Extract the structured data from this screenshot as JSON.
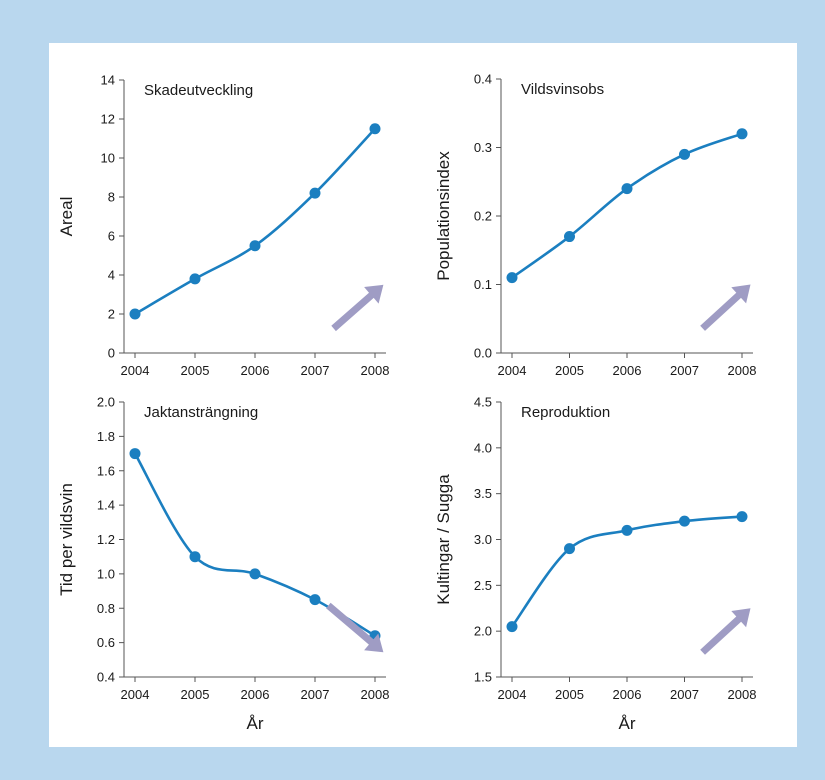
{
  "chart_data": [
    {
      "type": "line",
      "title": "Skadeutveckling",
      "xlabel": "",
      "ylabel": "Areal",
      "x": [
        "2004",
        "2005",
        "2006",
        "2007",
        "2008"
      ],
      "values": [
        2.0,
        3.8,
        5.5,
        8.2,
        11.5
      ],
      "ylim": [
        0,
        14
      ],
      "yticks": [
        "0",
        "2",
        "4",
        "6",
        "8",
        "10",
        "12",
        "14"
      ],
      "trend": "up",
      "color": "#1b7fc0",
      "arrow_color": "#9f9cc4"
    },
    {
      "type": "line",
      "title": "Vildsvinsobs",
      "xlabel": "",
      "ylabel": "Populationsindex",
      "x": [
        "2004",
        "2005",
        "2006",
        "2007",
        "2008"
      ],
      "values": [
        0.11,
        0.17,
        0.24,
        0.29,
        0.32
      ],
      "ylim": [
        0.0,
        0.4
      ],
      "yticks": [
        "0.0",
        "0.1",
        "0.2",
        "0.3",
        "0.4"
      ],
      "trend": "up",
      "color": "#1b7fc0",
      "arrow_color": "#9f9cc4"
    },
    {
      "type": "line",
      "title": "Jaktansträngning",
      "xlabel": "År",
      "ylabel": "Tid per vildsvin",
      "x": [
        "2004",
        "2005",
        "2006",
        "2007",
        "2008"
      ],
      "values": [
        1.7,
        1.1,
        1.0,
        0.85,
        0.64
      ],
      "ylim": [
        0.4,
        2.0
      ],
      "yticks": [
        "0.4",
        "0.6",
        "0.8",
        "1.0",
        "1.2",
        "1.4",
        "1.6",
        "1.8",
        "2.0"
      ],
      "trend": "down",
      "color": "#1b7fc0",
      "arrow_color": "#9f9cc4"
    },
    {
      "type": "line",
      "title": "Reproduktion",
      "xlabel": "År",
      "ylabel": "Kultingar / Sugga",
      "x": [
        "2004",
        "2005",
        "2006",
        "2007",
        "2008"
      ],
      "values": [
        2.05,
        2.9,
        3.1,
        3.2,
        3.25
      ],
      "ylim": [
        1.5,
        4.5
      ],
      "yticks": [
        "1.5",
        "2.0",
        "2.5",
        "3.0",
        "3.5",
        "4.0",
        "4.5"
      ],
      "trend": "up",
      "color": "#1b7fc0",
      "arrow_color": "#9f9cc4"
    }
  ]
}
